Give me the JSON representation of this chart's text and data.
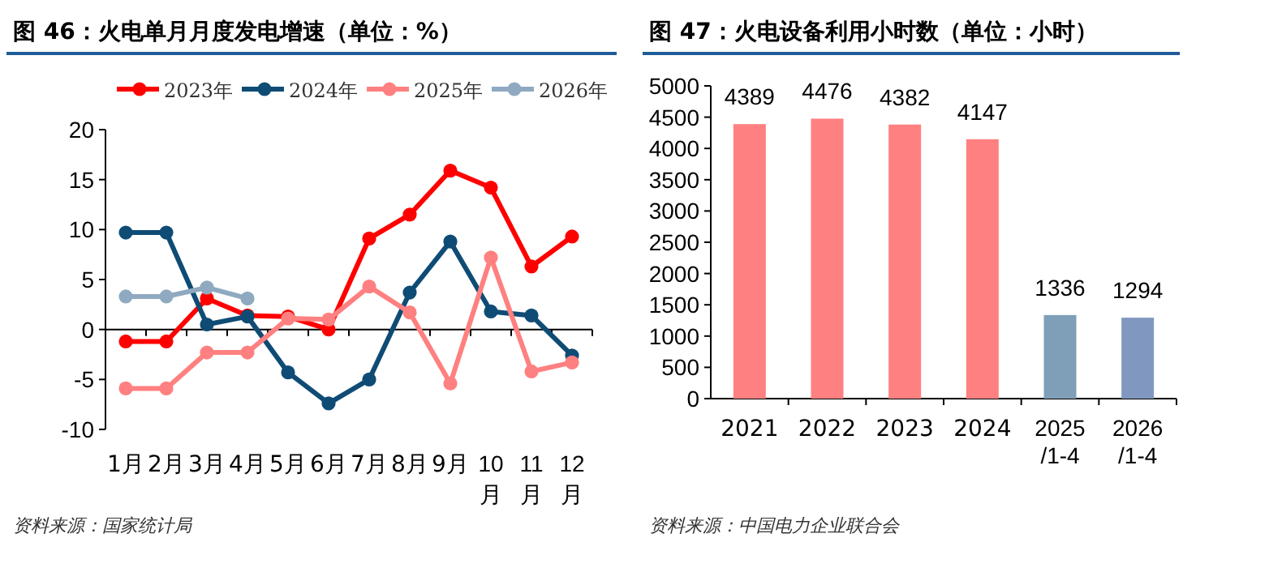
{
  "chart_data": [
    {
      "type": "line",
      "title": "图 46：火电单月月度发电增速（单位：%）",
      "categories": [
        "1月",
        "2月",
        "3月",
        "4月",
        "5月",
        "6月",
        "7月",
        "8月",
        "9月",
        "10月",
        "11月",
        "12月"
      ],
      "series": [
        {
          "name": "2023年",
          "color": "#ff0000",
          "values": [
            -1.2,
            -1.2,
            3.1,
            1.4,
            1.3,
            0,
            9.1,
            11.5,
            15.9,
            14.2,
            6.3,
            9.3
          ]
        },
        {
          "name": "2024年",
          "color": "#0f4c75",
          "values": [
            9.7,
            9.7,
            0.5,
            1.3,
            -4.3,
            -7.4,
            -5.0,
            3.7,
            8.8,
            1.8,
            1.4,
            -2.6
          ]
        },
        {
          "name": "2025年",
          "color": "#ff8080",
          "values": [
            -5.9,
            -5.9,
            -2.3,
            -2.3,
            1.1,
            1.0,
            4.3,
            1.7,
            -5.4,
            7.2,
            -4.2,
            -3.3
          ]
        },
        {
          "name": "2026年",
          "color": "#8faac0",
          "values": [
            3.3,
            3.3,
            4.2,
            3.1,
            null,
            null,
            null,
            null,
            null,
            null,
            null,
            null
          ]
        }
      ],
      "ylim": [
        -10,
        20
      ],
      "yticks": [
        -10,
        -5,
        0,
        5,
        10,
        15,
        20
      ],
      "marker": "circle",
      "legend": "top",
      "annotations": [
        "资料来源：国家统计局"
      ]
    },
    {
      "type": "bar",
      "title": "图 47：火电设备利用小时数（单位：小时）",
      "categories": [
        "2021",
        "2022",
        "2023",
        "2024",
        "2025/1-4",
        "2026/1-4"
      ],
      "values": [
        4389,
        4476,
        4382,
        4147,
        1336,
        1294
      ],
      "colors": [
        "#ff8080",
        "#ff8080",
        "#ff8080",
        "#ff8080",
        "#7f9fb8",
        "#8098c0"
      ],
      "ylim": [
        0,
        5000
      ],
      "yticks": [
        0,
        500,
        1000,
        1500,
        2000,
        2500,
        3000,
        3500,
        4000,
        4500,
        5000
      ],
      "data_labels": true,
      "annotations": [
        "资料来源：中国电力企业联合会"
      ]
    }
  ]
}
